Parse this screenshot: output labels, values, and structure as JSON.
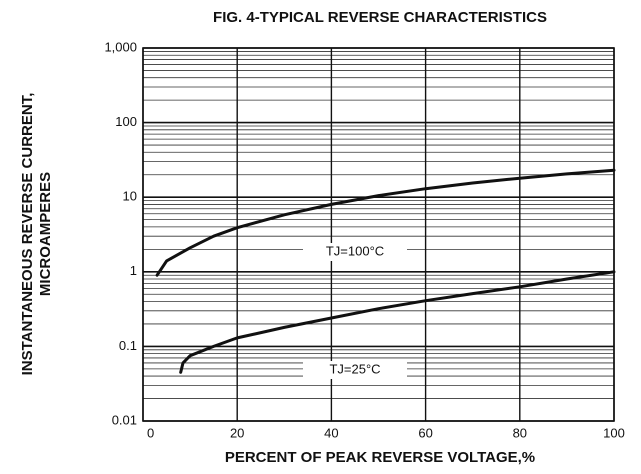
{
  "chart_data": {
    "type": "line",
    "title": "FIG. 4-TYPICAL REVERSE CHARACTERISTICS",
    "y_label": [
      "INSTANTANEOUS REVERSE CURRENT,",
      "MICROAMPERES"
    ],
    "x_label": "PERCENT OF PEAK REVERSE VOLTAGE,%",
    "xlim": [
      0,
      100
    ],
    "xticks": [
      0,
      20,
      40,
      60,
      80,
      100
    ],
    "ylim": [
      0.01,
      1000
    ],
    "y_scale": "log",
    "yticks": [
      0.01,
      0.1,
      1,
      10,
      100,
      {
        "value": 1000,
        "label": "1,000"
      }
    ],
    "grid": true,
    "minor_grid": true,
    "series": [
      {
        "name": "TJ=100°C",
        "color": "#111111",
        "x": [
          3,
          5,
          10,
          15,
          20,
          30,
          40,
          50,
          60,
          70,
          80,
          90,
          100
        ],
        "values": [
          0.9,
          1.4,
          2.1,
          3.0,
          3.9,
          5.8,
          8,
          10.5,
          13,
          15.5,
          18,
          20.5,
          23
        ]
      },
      {
        "name": "TJ=25°C",
        "color": "#111111",
        "x": [
          8,
          8.5,
          10,
          15,
          20,
          30,
          40,
          50,
          60,
          70,
          80,
          90,
          100
        ],
        "values": [
          0.045,
          0.06,
          0.075,
          0.1,
          0.13,
          0.18,
          0.24,
          0.32,
          0.41,
          0.51,
          0.63,
          0.8,
          1.0
        ]
      }
    ]
  }
}
